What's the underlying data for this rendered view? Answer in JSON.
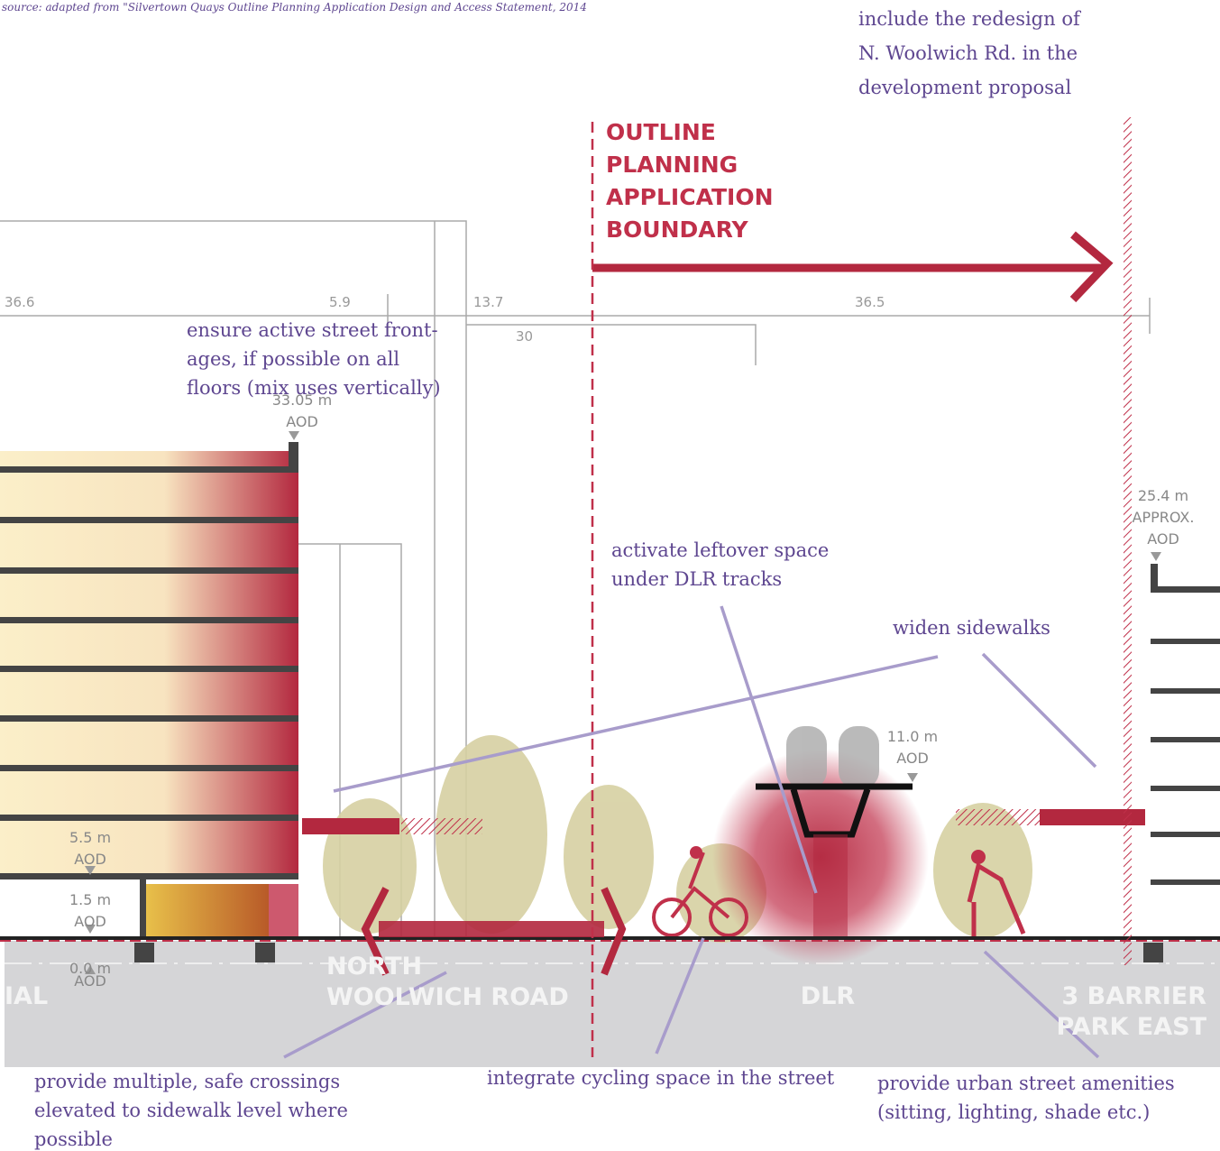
{
  "source": "source: adapted from \"Silvertown Quays Outline Planning Application Design and Access Statement, 2014",
  "boundary": {
    "lines": [
      "OUTLINE",
      "PLANNING",
      "APPLICATION",
      "BOUNDARY"
    ]
  },
  "dimensions": [
    "36.6",
    "5.9",
    "13.7",
    "30",
    "36.5"
  ],
  "elevations": [
    {
      "lines": [
        "33.05 m",
        "AOD"
      ]
    },
    {
      "lines": [
        "25.4 m",
        "APPROX.",
        "AOD"
      ]
    },
    {
      "lines": [
        "11.0 m",
        "AOD"
      ]
    },
    {
      "lines": [
        "5.5 m",
        "AOD"
      ]
    },
    {
      "lines": [
        "1.5 m",
        "AOD"
      ]
    },
    {
      "lines": [
        "0.0 m",
        "AOD"
      ]
    }
  ],
  "road_labels": [
    {
      "lines": [
        "IAL"
      ]
    },
    {
      "lines": [
        "NORTH",
        "WOOLWICH ROAD"
      ]
    },
    {
      "lines": [
        "DLR"
      ]
    },
    {
      "lines": [
        "3 BARRIER",
        "PARK EAST"
      ]
    }
  ],
  "annotations": [
    {
      "lines": [
        "include the redesign of",
        "N. Woolwich Rd. in the",
        "development proposal"
      ]
    },
    {
      "lines": [
        "ensure active street front-",
        "ages, if possible on all",
        "floors (mix uses vertically)"
      ]
    },
    {
      "lines": [
        "activate leftover space",
        "under DLR tracks"
      ]
    },
    {
      "lines": [
        "widen sidewalks"
      ]
    },
    {
      "lines": [
        "provide multiple, safe crossings",
        "elevated to sidewalk level where",
        "possible"
      ]
    },
    {
      "lines": [
        "integrate cycling space in the street"
      ]
    },
    {
      "lines": [
        "provide urban street amenities",
        "(sitting, lighting, shade etc.)"
      ]
    }
  ]
}
